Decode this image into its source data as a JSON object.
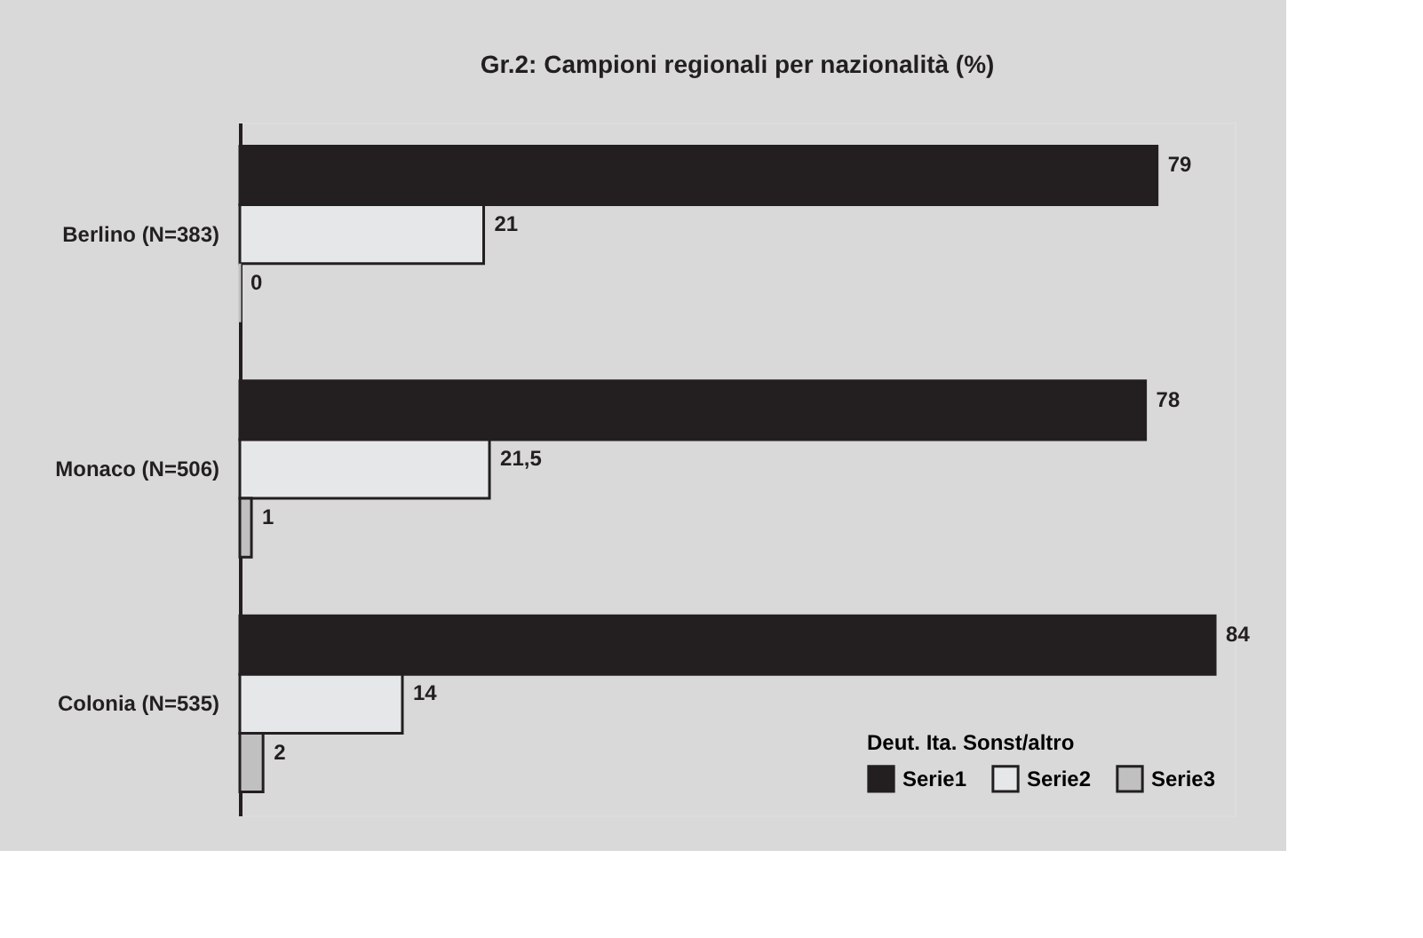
{
  "chart_data": {
    "type": "bar",
    "orientation": "horizontal",
    "title": "Gr.2: Campioni regionali per nazionalità (%)",
    "categories": [
      "Berlino (N=383)",
      "Monaco (N=506)",
      "Colonia (N=535)"
    ],
    "series": [
      {
        "name": "Serie1",
        "color": "#231f20",
        "values": [
          79,
          78,
          84
        ],
        "value_labels": [
          "79",
          "78",
          "84"
        ]
      },
      {
        "name": "Serie2",
        "color": "#e6e7e8",
        "values": [
          21,
          21.5,
          14
        ],
        "value_labels": [
          "21",
          "21,5",
          "14"
        ]
      },
      {
        "name": "Serie3",
        "color": "#c0c0c0",
        "values": [
          0,
          1,
          2
        ],
        "value_labels": [
          "0",
          "1",
          "2"
        ]
      }
    ],
    "legend_title": "Deut. Ita. Sonst/altro",
    "legend": "bottom right"
  }
}
